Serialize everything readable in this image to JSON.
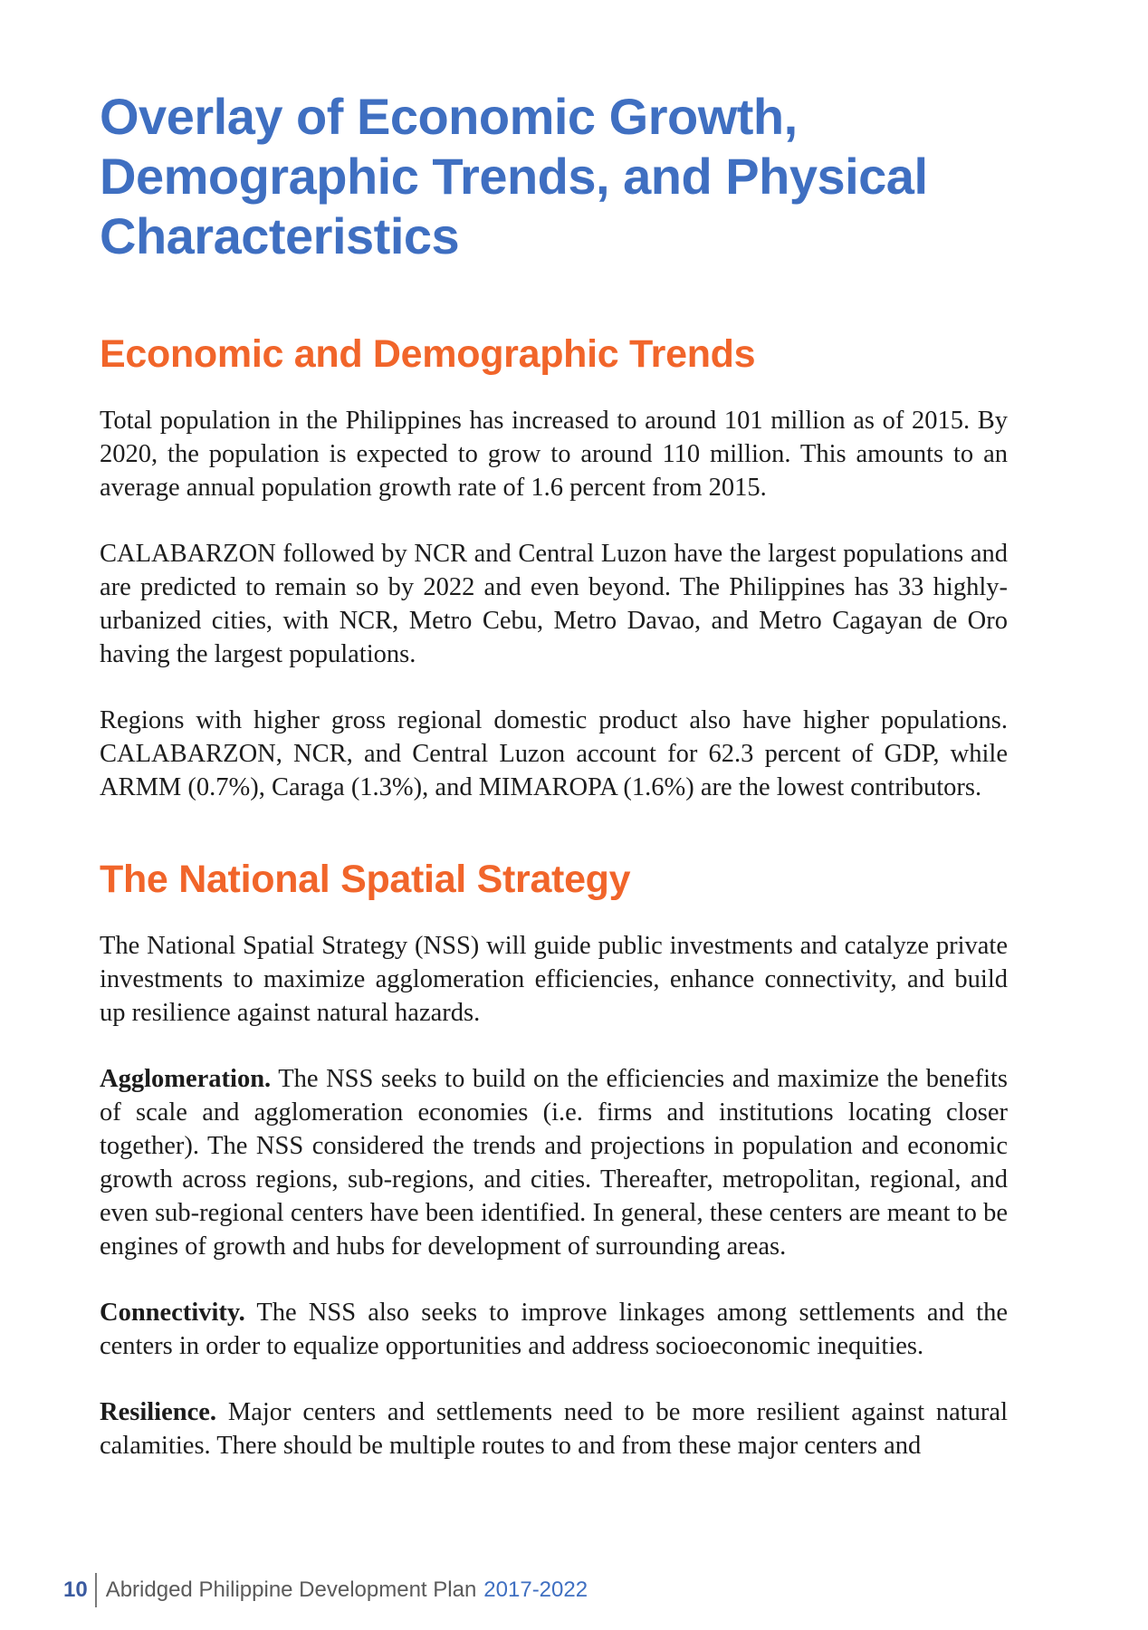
{
  "title": "Overlay of Economic Growth, Demographic Trends, and Physical Characteristics",
  "sections": [
    {
      "heading": "Economic and Demographic Trends",
      "paragraphs": [
        "Total population in the Philippines has increased to around 101 million as of 2015. By 2020, the population is expected to grow to around 110 million. This amounts to an average annual population growth rate of 1.6 percent from 2015.",
        "CALABARZON followed by NCR and Central Luzon have the largest populations and are predicted to remain so by 2022 and even beyond. The Philippines has 33 highly-urbanized cities, with NCR, Metro Cebu, Metro Davao, and Metro Cagayan de Oro having the largest populations.",
        "Regions with higher gross regional domestic product also have higher populations. CALABARZON, NCR, and Central Luzon account for 62.3 percent of GDP, while ARMM (0.7%), Caraga (1.3%), and MIMAROPA (1.6%) are the lowest contributors."
      ]
    },
    {
      "heading": "The National Spatial Strategy",
      "intro": "The National Spatial Strategy (NSS) will guide public investments and catalyze private investments to maximize agglomeration efficiencies, enhance connectivity, and build up resilience against natural hazards.",
      "items": [
        {
          "lead": "Agglomeration.",
          "text": " The NSS seeks to build on the efficiencies and maximize the benefits of scale and agglomeration economies (i.e. firms and institutions locating closer together). The NSS considered the trends and projections in population and economic growth across regions, sub-regions, and cities. Thereafter, metropolitan, regional, and even sub-regional centers have been identified. In general, these centers are meant to be engines of growth and hubs for development of surrounding areas."
        },
        {
          "lead": "Connectivity.",
          "text": " The NSS also seeks to improve linkages among settlements and the centers in order to equalize opportunities and address socioeconomic inequities."
        },
        {
          "lead": "Resilience.",
          "text": " Major centers and settlements need to be more resilient against natural calamities. There should be multiple routes to and from these major centers and"
        }
      ]
    }
  ],
  "footer": {
    "page_number": "10",
    "doc_title": "Abridged Philippine Development Plan",
    "doc_years": "2017-2022"
  }
}
